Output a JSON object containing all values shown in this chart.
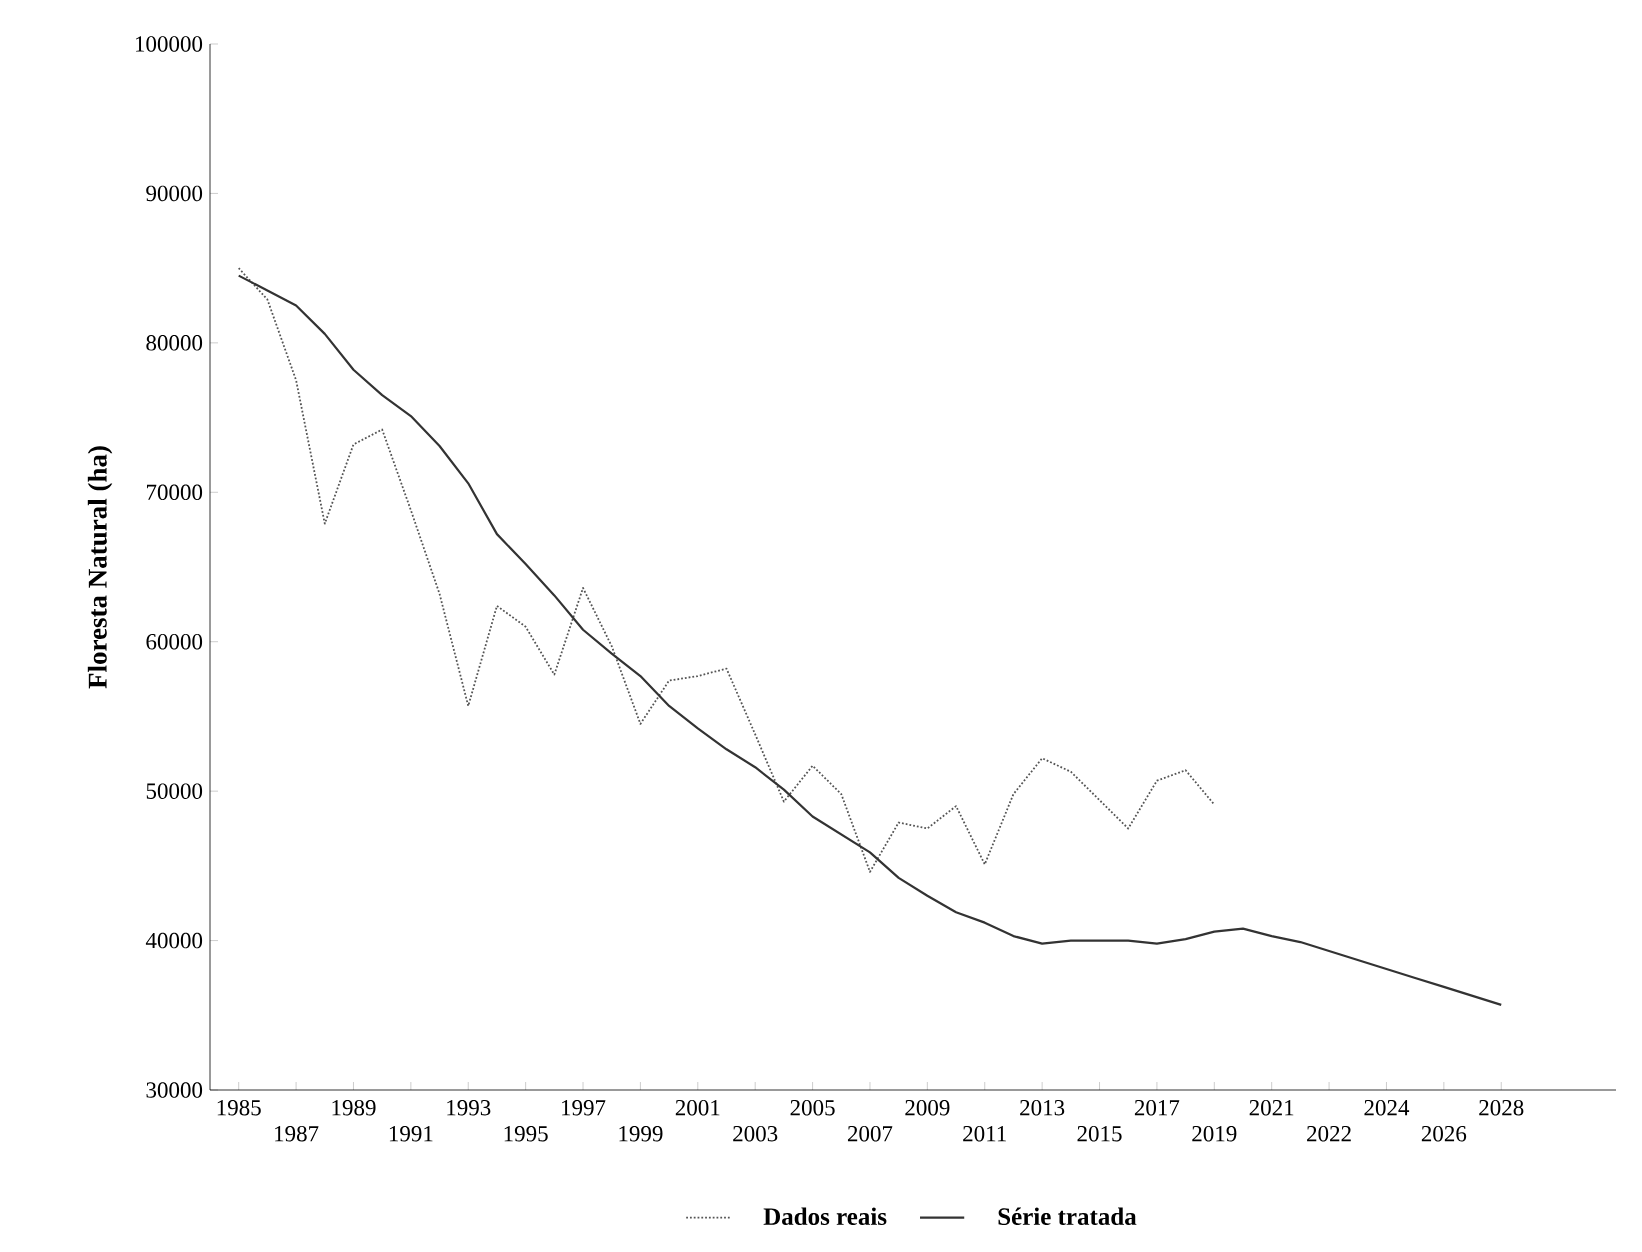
{
  "chart_data": {
    "type": "line",
    "ylabel": "Floresta Natural (ha)",
    "categories": [
      "1985",
      null,
      "1987",
      null,
      "1989",
      null,
      "1991",
      null,
      "1993",
      null,
      "1995",
      null,
      "1997",
      null,
      "1999",
      null,
      "2001",
      null,
      "2003",
      null,
      "2005",
      null,
      "2007",
      null,
      "2009",
      null,
      "2011",
      null,
      "2013",
      null,
      "2015",
      null,
      "2017",
      null,
      "2019",
      null,
      "2021",
      null,
      "2022",
      null,
      "2024",
      null,
      "2026",
      null,
      "2028",
      null,
      null,
      null
    ],
    "series": [
      {
        "name": "Dados reais",
        "color": "#555555",
        "line_style": "dotted",
        "values": [
          85000,
          82900,
          77500,
          67900,
          73200,
          74200,
          68800,
          63200,
          55700,
          62400,
          61000,
          57800,
          63600,
          59700,
          54500,
          57400,
          57700,
          58200,
          53800,
          49300,
          51700,
          49800,
          44600,
          47900,
          47500,
          49000,
          45100,
          49800,
          52200,
          51300,
          49400,
          47500,
          50700,
          51400,
          49100,
          null,
          null,
          null,
          null,
          null,
          null,
          null,
          null,
          null,
          null,
          null,
          null,
          null
        ]
      },
      {
        "name": "Série tratada",
        "color": "#333333",
        "line_style": "solid",
        "values": [
          84500,
          83500,
          82500,
          80600,
          78200,
          76500,
          75100,
          73100,
          70600,
          67200,
          65200,
          63100,
          60800,
          59200,
          57700,
          55700,
          54200,
          52800,
          51600,
          50100,
          48300,
          47100,
          45900,
          44200,
          43000,
          41900,
          41200,
          40300,
          39800,
          40000,
          40000,
          40000,
          39800,
          40100,
          40600,
          40800,
          40300,
          39900,
          39300,
          38700,
          38100,
          37500,
          36900,
          36300,
          35700,
          null,
          null,
          null
        ]
      }
    ],
    "ylim": [
      30000,
      100000
    ],
    "yticks": [
      30000,
      40000,
      50000,
      60000,
      70000,
      80000,
      90000,
      100000
    ],
    "legend": "bottom",
    "marker": "none"
  }
}
